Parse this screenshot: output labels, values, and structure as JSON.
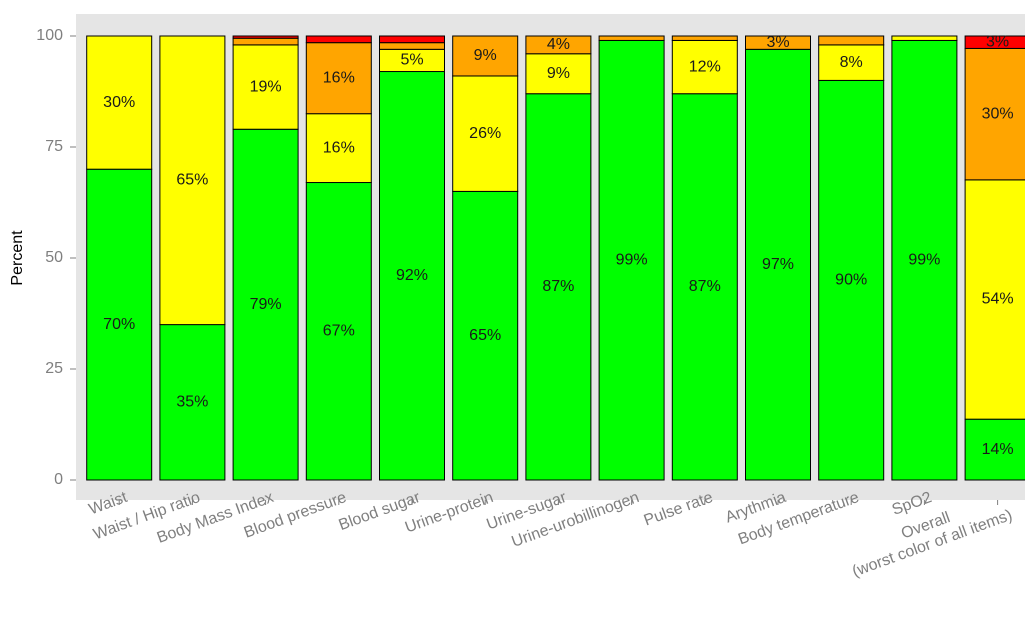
{
  "chart_data": {
    "type": "stacked_bar",
    "ylabel": "Percent",
    "categories": [
      "Waist",
      "Waist / Hip ratio",
      "Body Mass Index",
      "Blood pressure",
      "Blood sugar",
      "Urine-protein",
      "Urine-sugar",
      "Urine-urobillinogen",
      "Pulse rate",
      "Arythmia",
      "Body temperature",
      "SpO2",
      "Overall\n(worst color of all items)"
    ],
    "series": [
      {
        "color": "#00ff00",
        "values": [
          70,
          35,
          79,
          67,
          92,
          65,
          87,
          99,
          87,
          97,
          90,
          99,
          13.7
        ],
        "value_labels": [
          "70%",
          "35%",
          "79%",
          "67%",
          "92%",
          "65%",
          "87%",
          "99%",
          "87%",
          "97%",
          "90%",
          "99%",
          "14%"
        ]
      },
      {
        "color": "#ffff00",
        "values": [
          30,
          65,
          19,
          15.5,
          5,
          26,
          9,
          0,
          12,
          0,
          8,
          1,
          53.9
        ],
        "value_labels": [
          "30%",
          "65%",
          "19%",
          "16%",
          "5%",
          "26%",
          "9%",
          null,
          "12%",
          null,
          "8%",
          null,
          "54%"
        ]
      },
      {
        "color": "#ffa500",
        "values": [
          0,
          0,
          1.5,
          16,
          1.5,
          9,
          4,
          1,
          1,
          3,
          2,
          0,
          29.6
        ],
        "value_labels": [
          null,
          null,
          null,
          "16%",
          null,
          "9%",
          "4%",
          null,
          null,
          "3%",
          null,
          null,
          "30%"
        ]
      },
      {
        "color": "#ff0000",
        "values": [
          0,
          0,
          0.5,
          1.5,
          1.5,
          0,
          0,
          0,
          0,
          0,
          0,
          0,
          2.8
        ],
        "value_labels": [
          null,
          null,
          null,
          null,
          null,
          null,
          null,
          null,
          null,
          null,
          null,
          null,
          "3%"
        ]
      }
    ],
    "ylim": [
      0,
      100
    ],
    "yticks": [
      0,
      25,
      50,
      75,
      100
    ],
    "grid": false
  }
}
